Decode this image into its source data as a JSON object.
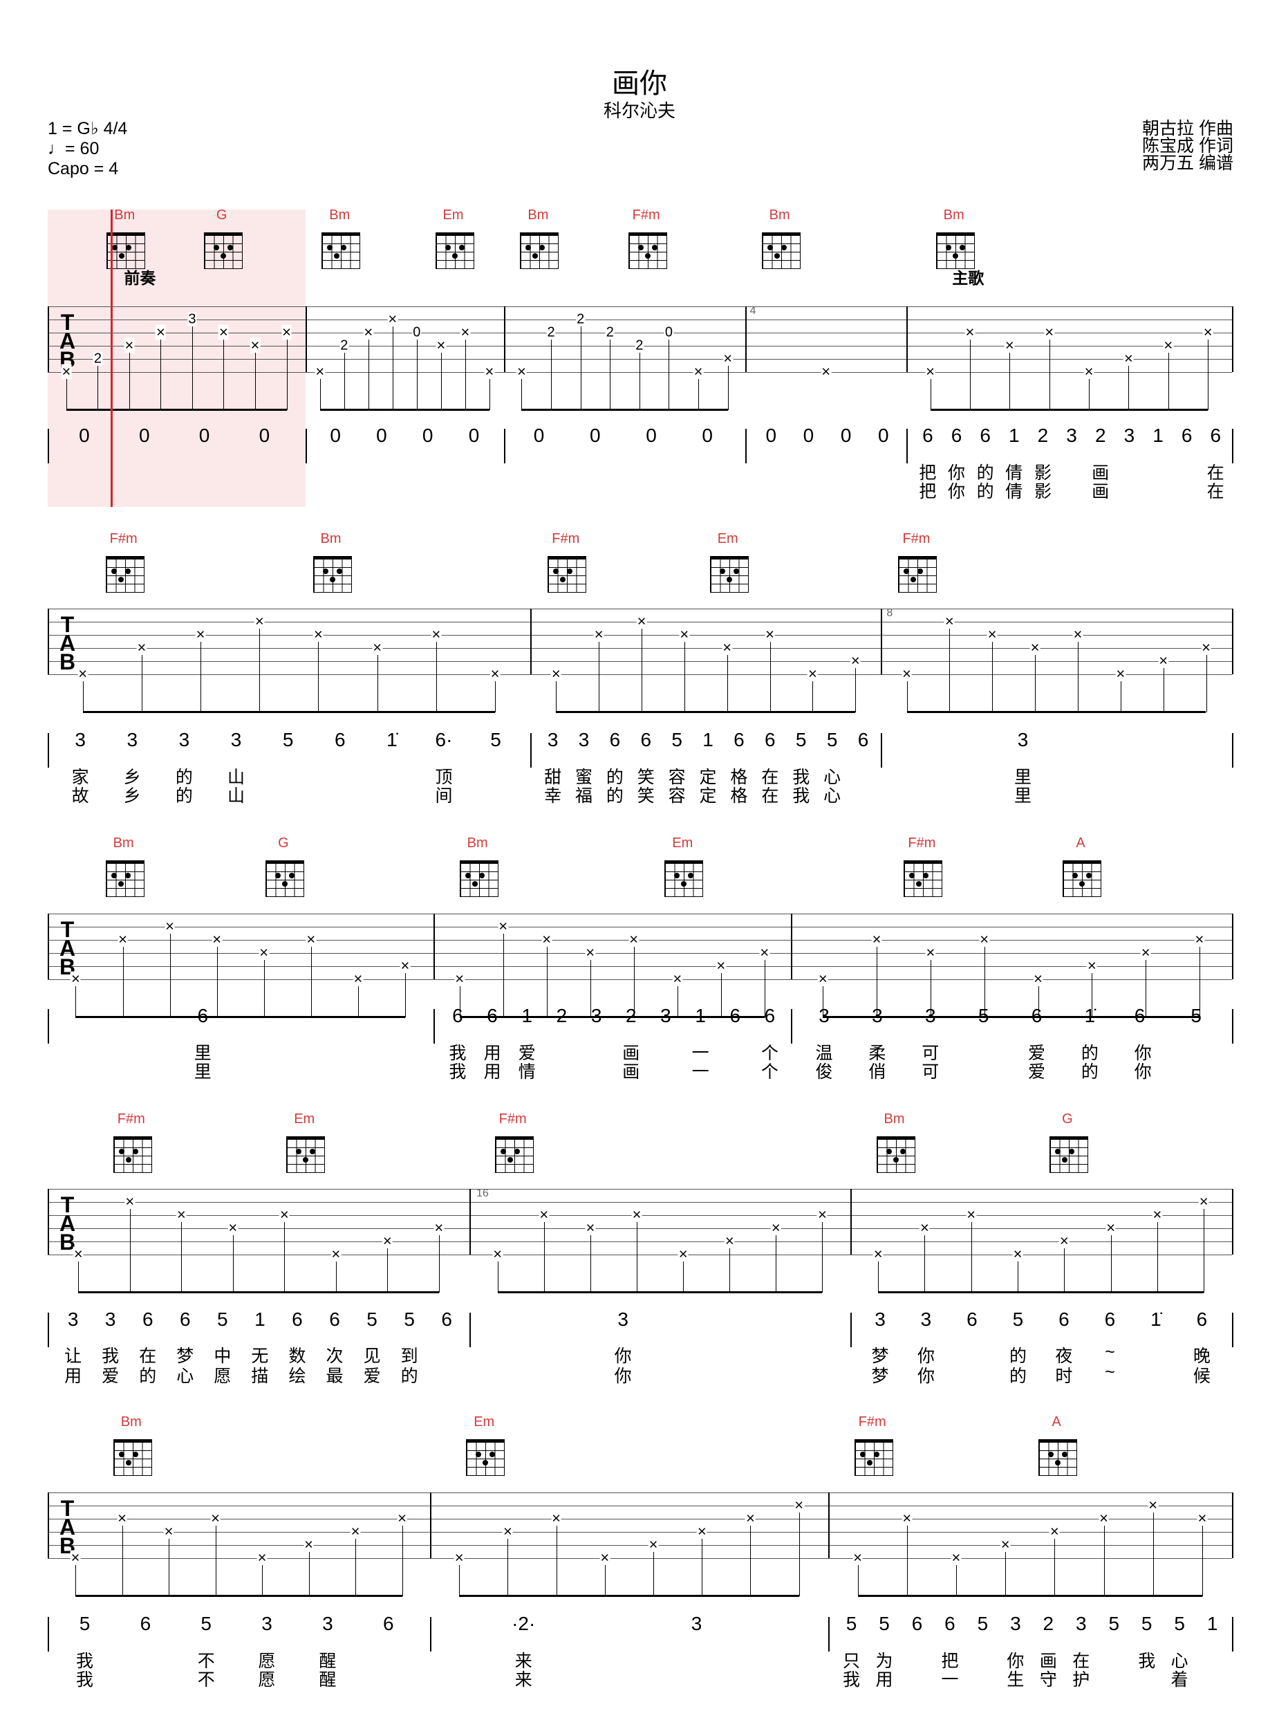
{
  "header": {
    "title": "画你",
    "artist": "科尔沁夫",
    "key_time": "1 = G♭ 4/4",
    "tempo": "♩= 60",
    "capo": "Capo = 4",
    "composer": "朝古拉 作曲",
    "lyricist": "陈宝成 作词",
    "arranger": "两万五 编谱"
  },
  "colors": {
    "chord": "#d33a3a",
    "highlight": "#fbe9ea",
    "cursor": "#d9232e"
  },
  "systems": [
    {
      "chords": [
        "Bm",
        "G",
        "Bm",
        "Em",
        "Bm",
        "F#m",
        "Bm",
        "Bm"
      ],
      "sections": [
        "前奏",
        "主歌"
      ],
      "measure_numbers": [
        "4"
      ],
      "measures": [
        {
          "notes": [
            "0",
            "0",
            "0",
            "0"
          ],
          "lyrics1": [],
          "lyrics2": [],
          "frets": [
            "2",
            "3"
          ]
        },
        {
          "notes": [
            "0",
            "0",
            "0",
            "0"
          ],
          "lyrics1": [],
          "lyrics2": [],
          "frets": [
            "2",
            "0"
          ]
        },
        {
          "notes": [
            "0",
            "0",
            "0",
            "0"
          ],
          "lyrics1": [],
          "lyrics2": [],
          "frets": [
            "2",
            "2",
            "2",
            "2",
            "0"
          ]
        },
        {
          "notes": [
            "0",
            "0",
            "0",
            "0"
          ],
          "lyrics1": [],
          "lyrics2": [],
          "frets": []
        },
        {
          "notes": [
            "6",
            "6",
            "6",
            "1",
            "2",
            "3",
            "2",
            "3",
            "1",
            "6",
            "6"
          ],
          "lyrics1": [
            "把",
            "你",
            "的",
            "倩",
            "影",
            "",
            "画",
            "",
            "",
            "",
            "在"
          ],
          "lyrics2": [
            "把",
            "你",
            "的",
            "倩",
            "影",
            "",
            "画",
            "",
            "",
            "",
            "在"
          ],
          "frets": []
        }
      ]
    },
    {
      "chords": [
        "F#m",
        "Bm",
        "F#m",
        "Em",
        "F#m"
      ],
      "sections": [],
      "measure_numbers": [
        "8"
      ],
      "measures": [
        {
          "notes": [
            "3",
            "3",
            "3",
            "3",
            "5",
            "6",
            "1̇",
            "6·",
            "5"
          ],
          "lyrics1": [
            "家",
            "乡",
            "的",
            "山",
            "",
            "",
            "",
            "顶",
            ""
          ],
          "lyrics2": [
            "故",
            "乡",
            "的",
            "山",
            "",
            "",
            "",
            "间",
            ""
          ],
          "frets": []
        },
        {
          "notes": [
            "3",
            "3",
            "6",
            "6",
            "5",
            "1",
            "6",
            "6",
            "5",
            "5",
            "6"
          ],
          "lyrics1": [
            "甜",
            "蜜",
            "的",
            "笑",
            "容",
            "定",
            "格",
            "在",
            "我",
            "心",
            ""
          ],
          "lyrics2": [
            "幸",
            "福",
            "的",
            "笑",
            "容",
            "定",
            "格",
            "在",
            "我",
            "心",
            ""
          ],
          "frets": []
        },
        {
          "notes": [
            "3"
          ],
          "lyrics1": [
            "里"
          ],
          "lyrics2": [
            "里"
          ],
          "frets": []
        }
      ]
    },
    {
      "chords": [
        "Bm",
        "G",
        "Bm",
        "Em",
        "F#m",
        "A"
      ],
      "sections": [],
      "measure_numbers": [],
      "measures": [
        {
          "notes": [
            "6"
          ],
          "lyrics1": [
            "里"
          ],
          "lyrics2": [
            "里"
          ],
          "frets": []
        },
        {
          "notes": [
            "6",
            "6",
            "1",
            "2",
            "3",
            "2",
            "3",
            "1",
            "6",
            "6"
          ],
          "lyrics1": [
            "我",
            "用",
            "爱",
            "",
            "",
            "画",
            "",
            "一",
            "",
            "个"
          ],
          "lyrics2": [
            "我",
            "用",
            "情",
            "",
            "",
            "画",
            "",
            "一",
            "",
            "个"
          ],
          "frets": []
        },
        {
          "notes": [
            "3",
            "3",
            "3",
            "5",
            "6",
            "1̇",
            "6·",
            "5"
          ],
          "lyrics1": [
            "温",
            "柔",
            "可",
            "",
            "爱",
            "的",
            "你",
            ""
          ],
          "lyrics2": [
            "俊",
            "俏",
            "可",
            "",
            "爱",
            "的",
            "你",
            ""
          ],
          "frets": []
        }
      ]
    },
    {
      "chords": [
        "F#m",
        "Em",
        "F#m",
        "Bm",
        "G"
      ],
      "sections": [],
      "measure_numbers": [
        "16"
      ],
      "measures": [
        {
          "notes": [
            "3",
            "3",
            "6",
            "6",
            "5",
            "1",
            "6",
            "6",
            "5",
            "5",
            "6"
          ],
          "lyrics1": [
            "让",
            "我",
            "在",
            "梦",
            "中",
            "无",
            "数",
            "次",
            "见",
            "到",
            ""
          ],
          "lyrics2": [
            "用",
            "爱",
            "的",
            "心",
            "愿",
            "描",
            "绘",
            "最",
            "爱",
            "的",
            ""
          ],
          "frets": []
        },
        {
          "notes": [
            "3"
          ],
          "lyrics1": [
            "你"
          ],
          "lyrics2": [
            "你"
          ],
          "frets": []
        },
        {
          "notes": [
            "3",
            "3",
            "6",
            "5",
            "6",
            "6",
            "1̇",
            "6"
          ],
          "lyrics1": [
            "梦",
            "你",
            "",
            "的",
            "夜",
            "~",
            "",
            "晚"
          ],
          "lyrics2": [
            "梦",
            "你",
            "",
            "的",
            "时",
            "~",
            "",
            "候"
          ],
          "frets": []
        }
      ]
    },
    {
      "chords": [
        "Bm",
        "Em",
        "F#m",
        "A"
      ],
      "sections": [],
      "measure_numbers": [],
      "measures": [
        {
          "notes": [
            "5",
            "6",
            "5",
            "3",
            "3",
            "6"
          ],
          "lyrics1": [
            "我",
            "",
            "不",
            "愿",
            "醒",
            ""
          ],
          "lyrics2": [
            "我",
            "",
            "不",
            "愿",
            "醒",
            ""
          ],
          "frets": []
        },
        {
          "notes": [
            "·2·",
            "3"
          ],
          "lyrics1": [
            "来",
            ""
          ],
          "lyrics2": [
            "来",
            ""
          ],
          "frets": []
        },
        {
          "notes": [
            "5",
            "5",
            "6",
            "6",
            "5",
            "3",
            "2",
            "3",
            "5",
            "5",
            "5",
            "1"
          ],
          "lyrics1": [
            "只",
            "为",
            "",
            "把",
            "",
            "你",
            "画",
            "在",
            "",
            "我",
            "心",
            ""
          ],
          "lyrics2": [
            "我",
            "用",
            "",
            "一",
            "",
            "生",
            "守",
            "护",
            "",
            "",
            "着",
            ""
          ],
          "frets": []
        }
      ]
    }
  ]
}
